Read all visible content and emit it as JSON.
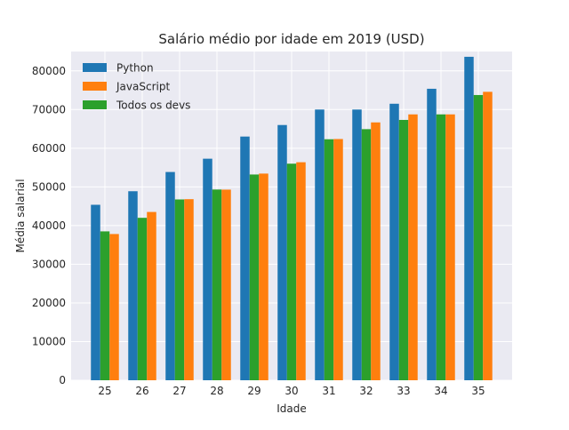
{
  "chart_data": {
    "type": "bar",
    "title": "Salário médio por idade em 2019 (USD)",
    "xlabel": "Idade",
    "ylabel": "Média salarial",
    "categories": [
      "25",
      "26",
      "27",
      "28",
      "29",
      "30",
      "31",
      "32",
      "33",
      "34",
      "35"
    ],
    "ylim": [
      0,
      85000
    ],
    "yticks": [
      0,
      10000,
      20000,
      30000,
      40000,
      50000,
      60000,
      70000,
      80000
    ],
    "grid": true,
    "legend_position": "top-left",
    "series": [
      {
        "name": "Python",
        "color": "#1f77b4",
        "values": [
          45372,
          48876,
          53850,
          57287,
          63016,
          65998,
          70003,
          70000,
          71496,
          75370,
          83640
        ]
      },
      {
        "name": "Todos os devs",
        "color": "#2ca02c",
        "values": [
          38496,
          42000,
          46752,
          49320,
          53200,
          56000,
          62316,
          64928,
          67317,
          68748,
          73752
        ]
      },
      {
        "name": "JavaScript",
        "color": "#ff7f0e",
        "values": [
          37810,
          43515,
          46823,
          49293,
          53437,
          56373,
          62375,
          66674,
          68745,
          68746,
          74583
        ]
      }
    ],
    "legend_order": [
      "Python",
      "JavaScript",
      "Todos os devs"
    ],
    "background": "#eaeaf2"
  }
}
